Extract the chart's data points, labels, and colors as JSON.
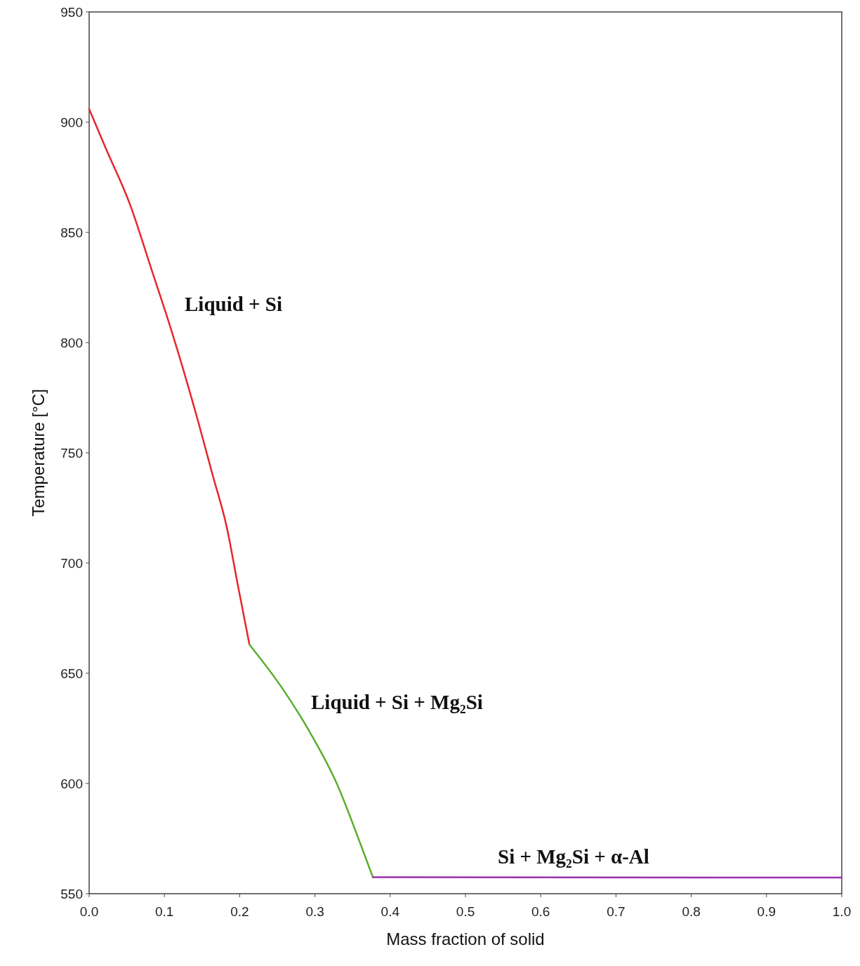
{
  "chart_data": {
    "type": "line",
    "xlabel": "Mass fraction of solid",
    "ylabel": "Temperature [°C]",
    "xlim": [
      0,
      1
    ],
    "ylim": [
      550,
      950
    ],
    "xticks": [
      {
        "value": 0,
        "label": "0.0"
      },
      {
        "value": 0.1,
        "label": "0.1"
      },
      {
        "value": 0.2,
        "label": "0.2"
      },
      {
        "value": 0.3,
        "label": "0.3"
      },
      {
        "value": 0.4,
        "label": "0.4"
      },
      {
        "value": 0.5,
        "label": "0.5"
      },
      {
        "value": 0.6,
        "label": "0.6"
      },
      {
        "value": 0.7,
        "label": "0.7"
      },
      {
        "value": 0.8,
        "label": "0.8"
      },
      {
        "value": 0.9,
        "label": "0.9"
      },
      {
        "value": 1,
        "label": "1.0"
      }
    ],
    "yticks": [
      550,
      600,
      650,
      700,
      750,
      800,
      850,
      900,
      950
    ],
    "grid": false,
    "marker": "none",
    "line_style": "solid",
    "series": [
      {
        "color": "#e8262b",
        "x": [
          0,
          0.021,
          0.055,
          0.083,
          0.107,
          0.145,
          0.164,
          0.183,
          0.197,
          0.213
        ],
        "values": [
          906,
          889,
          862,
          833,
          808,
          764,
          740,
          716,
          691,
          663
        ]
      },
      {
        "color": "#5aae2e",
        "x": [
          0.213,
          0.255,
          0.292,
          0.329,
          0.36,
          0.377
        ],
        "values": [
          663,
          644,
          624,
          600,
          573,
          557.5
        ]
      },
      {
        "color": "#9b30b0",
        "x": [
          0.377,
          1
        ],
        "values": [
          557.5,
          557.3
        ]
      }
    ],
    "annotations": [
      "Liquid + Si",
      "Liquid + Si + Mg₂Si",
      "Si + Mg₂Si + α-Al"
    ]
  }
}
